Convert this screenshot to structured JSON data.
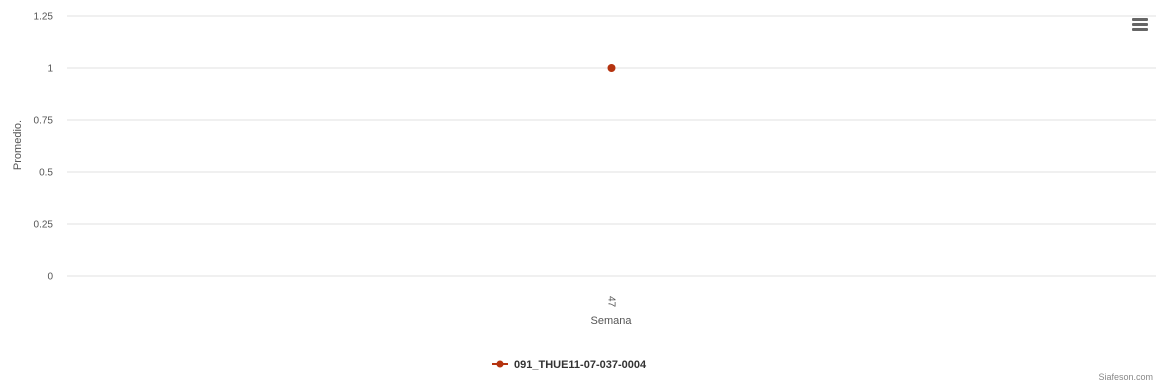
{
  "chart_data": {
    "type": "line",
    "title": "",
    "xlabel": "Semana",
    "ylabel": "Promedio.",
    "categories": [
      "47"
    ],
    "ylim": [
      0,
      1.25
    ],
    "yticks": [
      "0",
      "0.25",
      "0.5",
      "0.75",
      "1",
      "1.25"
    ],
    "series": [
      {
        "name": "091_THUE11-07-037-0004",
        "values": [
          1
        ],
        "color": "#b5330f"
      }
    ],
    "grid": true,
    "legend_position": "bottom-center"
  },
  "credits": "Siafeson.com",
  "menu": {
    "icon": "hamburger-menu-icon"
  },
  "colors": {
    "series": "#b5330f",
    "grid": "#e0e0e0",
    "text": "#555555"
  }
}
